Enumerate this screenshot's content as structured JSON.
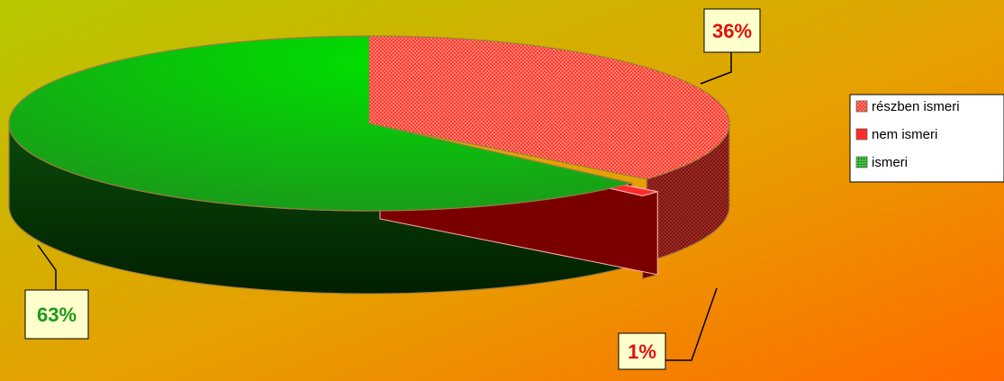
{
  "chart_data": {
    "type": "pie",
    "title": "",
    "categories": [
      "részben ismeri",
      "nem ismeri",
      "ismeri"
    ],
    "values": [
      36,
      1,
      63
    ],
    "labels": [
      "36%",
      "1%",
      "63%"
    ],
    "legend_position": "right",
    "colors": {
      "részben ismeri": "#f24a3a",
      "nem ismeri": "#d01020",
      "ismeri": "#1ab81a"
    },
    "background": "gradient yellow-green to orange",
    "style": "3d"
  }
}
